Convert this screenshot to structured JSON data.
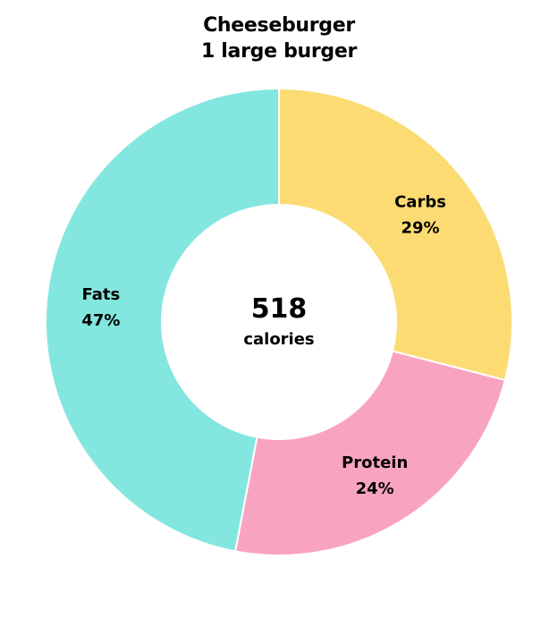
{
  "chart_data": {
    "type": "pie",
    "title": "Cheeseburger",
    "subtitle": "1 large burger",
    "center_value": "518",
    "center_unit": "calories",
    "slices": [
      {
        "label": "Carbs",
        "percent_label": "29%",
        "value": 29,
        "color": "#FCDC72"
      },
      {
        "label": "Protein",
        "percent_label": "24%",
        "value": 24,
        "color": "#F9A3C2"
      },
      {
        "label": "Fats",
        "percent_label": "47%",
        "value": 47,
        "color": "#83E6DF"
      }
    ]
  }
}
